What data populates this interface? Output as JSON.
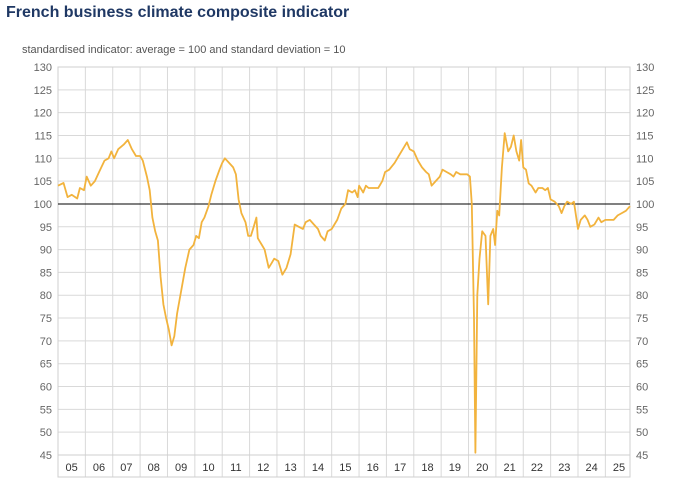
{
  "title": "French business climate composite indicator",
  "subtitle": "standardised indicator: average = 100 and standard deviation = 10",
  "colors": {
    "line": "#f2b33d",
    "reference": "#000000",
    "grid": "#d9d9d9",
    "title": "#1f3864"
  },
  "chart_data": {
    "type": "line",
    "title": "French business climate composite indicator",
    "ylabel": "standardised indicator: average = 100 and standard deviation = 10",
    "ylim": [
      45,
      130
    ],
    "yticks": [
      45,
      50,
      55,
      60,
      65,
      70,
      75,
      80,
      85,
      90,
      95,
      100,
      105,
      110,
      115,
      120,
      125,
      130
    ],
    "x_start": 2005.0,
    "x_end": 2025.9,
    "categories": [
      "05",
      "06",
      "07",
      "08",
      "09",
      "10",
      "11",
      "12",
      "13",
      "14",
      "15",
      "16",
      "17",
      "18",
      "19",
      "20",
      "21",
      "22",
      "23",
      "24",
      "25"
    ],
    "reference_line": 100,
    "grid": true,
    "series": [
      {
        "name": "Business climate composite indicator",
        "points": [
          [
            2005.0,
            104
          ],
          [
            2005.2,
            104.6
          ],
          [
            2005.35,
            101.5
          ],
          [
            2005.5,
            102
          ],
          [
            2005.7,
            101.2
          ],
          [
            2005.8,
            103.5
          ],
          [
            2005.95,
            103
          ],
          [
            2006.05,
            106
          ],
          [
            2006.2,
            104
          ],
          [
            2006.35,
            105
          ],
          [
            2006.5,
            107
          ],
          [
            2006.7,
            109.5
          ],
          [
            2006.85,
            110
          ],
          [
            2006.95,
            111.5
          ],
          [
            2007.05,
            110
          ],
          [
            2007.2,
            112
          ],
          [
            2007.4,
            113
          ],
          [
            2007.55,
            114
          ],
          [
            2007.7,
            112
          ],
          [
            2007.85,
            110.5
          ],
          [
            2008.0,
            110.5
          ],
          [
            2008.1,
            109.5
          ],
          [
            2008.25,
            106
          ],
          [
            2008.35,
            103
          ],
          [
            2008.45,
            97
          ],
          [
            2008.55,
            94
          ],
          [
            2008.65,
            92
          ],
          [
            2008.75,
            84
          ],
          [
            2008.85,
            78
          ],
          [
            2008.95,
            75
          ],
          [
            2009.05,
            72.5
          ],
          [
            2009.15,
            69
          ],
          [
            2009.25,
            71
          ],
          [
            2009.35,
            76
          ],
          [
            2009.5,
            81
          ],
          [
            2009.65,
            86
          ],
          [
            2009.8,
            90
          ],
          [
            2009.95,
            91
          ],
          [
            2010.05,
            93
          ],
          [
            2010.15,
            92.5
          ],
          [
            2010.25,
            96
          ],
          [
            2010.35,
            97
          ],
          [
            2010.5,
            99.5
          ],
          [
            2010.6,
            102
          ],
          [
            2010.75,
            105
          ],
          [
            2010.9,
            107.5
          ],
          [
            2011.0,
            109
          ],
          [
            2011.1,
            110
          ],
          [
            2011.25,
            109
          ],
          [
            2011.4,
            108
          ],
          [
            2011.5,
            106.5
          ],
          [
            2011.6,
            101
          ],
          [
            2011.7,
            98
          ],
          [
            2011.85,
            96
          ],
          [
            2011.95,
            93
          ],
          [
            2012.05,
            93
          ],
          [
            2012.15,
            95
          ],
          [
            2012.25,
            97
          ],
          [
            2012.3,
            92.5
          ],
          [
            2012.45,
            91
          ],
          [
            2012.55,
            90
          ],
          [
            2012.7,
            86
          ],
          [
            2012.8,
            87
          ],
          [
            2012.9,
            88
          ],
          [
            2013.05,
            87.5
          ],
          [
            2013.2,
            84.5
          ],
          [
            2013.35,
            86
          ],
          [
            2013.5,
            89
          ],
          [
            2013.65,
            95.5
          ],
          [
            2013.8,
            95
          ],
          [
            2013.95,
            94.5
          ],
          [
            2014.05,
            96
          ],
          [
            2014.2,
            96.5
          ],
          [
            2014.35,
            95.5
          ],
          [
            2014.5,
            94.5
          ],
          [
            2014.6,
            93
          ],
          [
            2014.75,
            92
          ],
          [
            2014.85,
            94
          ],
          [
            2015.0,
            94.5
          ],
          [
            2015.2,
            96.5
          ],
          [
            2015.35,
            99
          ],
          [
            2015.5,
            100
          ],
          [
            2015.6,
            103
          ],
          [
            2015.75,
            102.5
          ],
          [
            2015.85,
            103
          ],
          [
            2015.95,
            101.5
          ],
          [
            2016.0,
            104
          ],
          [
            2016.15,
            102.5
          ],
          [
            2016.25,
            104
          ],
          [
            2016.35,
            103.5
          ],
          [
            2016.5,
            103.5
          ],
          [
            2016.7,
            103.5
          ],
          [
            2016.85,
            105
          ],
          [
            2016.95,
            107
          ],
          [
            2017.1,
            107.5
          ],
          [
            2017.3,
            109
          ],
          [
            2017.45,
            110.5
          ],
          [
            2017.6,
            112
          ],
          [
            2017.75,
            113.5
          ],
          [
            2017.85,
            112
          ],
          [
            2018.0,
            111.5
          ],
          [
            2018.15,
            109.5
          ],
          [
            2018.3,
            108
          ],
          [
            2018.45,
            107
          ],
          [
            2018.55,
            106.5
          ],
          [
            2018.65,
            104
          ],
          [
            2018.8,
            105
          ],
          [
            2018.95,
            106
          ],
          [
            2019.05,
            107.5
          ],
          [
            2019.2,
            107
          ],
          [
            2019.35,
            106.5
          ],
          [
            2019.45,
            106
          ],
          [
            2019.55,
            107
          ],
          [
            2019.7,
            106.5
          ],
          [
            2019.85,
            106.5
          ],
          [
            2019.95,
            106.5
          ],
          [
            2020.05,
            106
          ],
          [
            2020.12,
            100
          ],
          [
            2020.2,
            75
          ],
          [
            2020.25,
            45.5
          ],
          [
            2020.32,
            80
          ],
          [
            2020.4,
            88
          ],
          [
            2020.5,
            94
          ],
          [
            2020.62,
            93
          ],
          [
            2020.72,
            78
          ],
          [
            2020.8,
            93
          ],
          [
            2020.9,
            94.5
          ],
          [
            2020.97,
            91
          ],
          [
            2021.05,
            98.5
          ],
          [
            2021.12,
            97.5
          ],
          [
            2021.22,
            108
          ],
          [
            2021.32,
            115.5
          ],
          [
            2021.45,
            111.5
          ],
          [
            2021.55,
            112.5
          ],
          [
            2021.65,
            115
          ],
          [
            2021.75,
            111.5
          ],
          [
            2021.85,
            109.5
          ],
          [
            2021.92,
            114
          ],
          [
            2022.0,
            108
          ],
          [
            2022.1,
            107.5
          ],
          [
            2022.2,
            104.5
          ],
          [
            2022.3,
            104
          ],
          [
            2022.45,
            102.5
          ],
          [
            2022.55,
            103.5
          ],
          [
            2022.7,
            103.5
          ],
          [
            2022.8,
            103
          ],
          [
            2022.9,
            103.5
          ],
          [
            2023.0,
            101
          ],
          [
            2023.15,
            100.5
          ],
          [
            2023.3,
            99.5
          ],
          [
            2023.4,
            98
          ],
          [
            2023.5,
            99.5
          ],
          [
            2023.6,
            100.5
          ],
          [
            2023.75,
            100
          ],
          [
            2023.85,
            100.5
          ],
          [
            2024.0,
            94.5
          ],
          [
            2024.1,
            96.5
          ],
          [
            2024.25,
            97.5
          ],
          [
            2024.35,
            96.5
          ],
          [
            2024.45,
            95
          ],
          [
            2024.6,
            95.5
          ],
          [
            2024.75,
            97
          ],
          [
            2024.85,
            96
          ],
          [
            2025.0,
            96.5
          ],
          [
            2025.15,
            96.5
          ],
          [
            2025.3,
            96.5
          ],
          [
            2025.45,
            97.5
          ],
          [
            2025.6,
            98
          ],
          [
            2025.75,
            98.5
          ],
          [
            2025.9,
            99.5
          ]
        ]
      }
    ]
  }
}
